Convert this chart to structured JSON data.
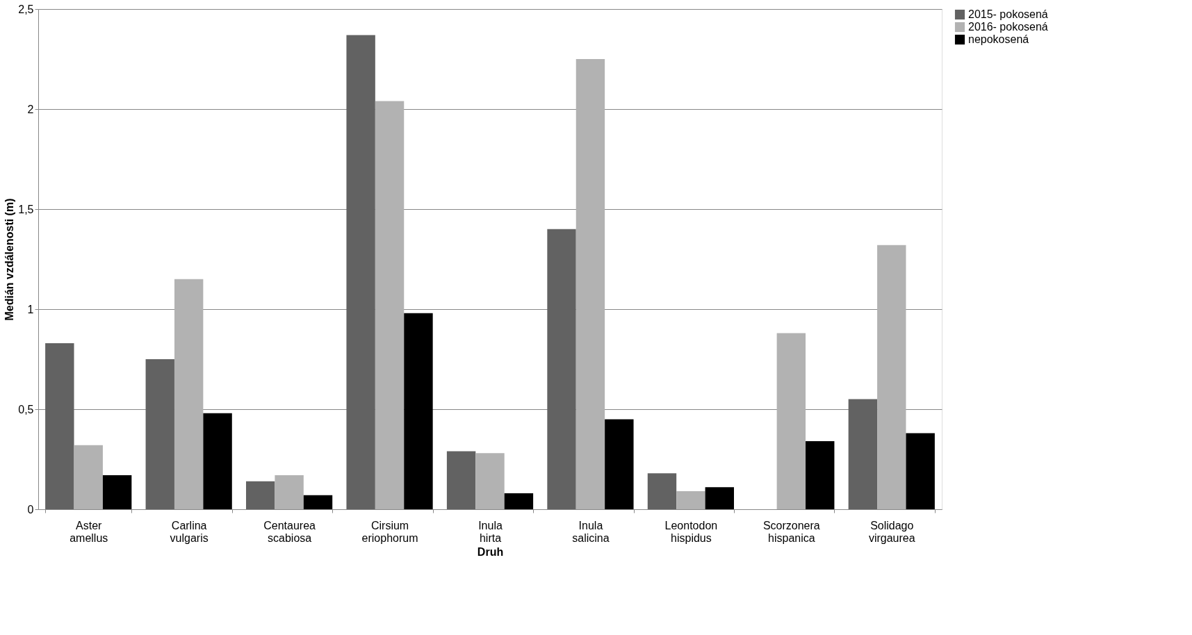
{
  "chart_data": {
    "type": "bar",
    "xlabel": "Druh",
    "ylabel": "Medián vzdálenosti (m)",
    "categories": [
      "Aster amellus",
      "Carlina vulgaris",
      "Centaurea scabiosa",
      "Cirsium eriophorum",
      "Inula hirta",
      "Inula salicina",
      "Leontodon hispidus",
      "Scorzonera hispanica",
      "Solidago virgaurea"
    ],
    "series": [
      {
        "name": "2015- pokosená",
        "color": "#626262",
        "values": [
          0.83,
          0.75,
          0.14,
          2.37,
          0.29,
          1.4,
          0.18,
          null,
          0.55
        ]
      },
      {
        "name": "2016- pokosená",
        "color": "#b2b2b2",
        "values": [
          0.32,
          1.15,
          0.17,
          2.04,
          0.28,
          2.25,
          0.09,
          0.88,
          1.32
        ]
      },
      {
        "name": "nepokosená",
        "color": "#000000",
        "values": [
          0.17,
          0.48,
          0.07,
          0.98,
          0.08,
          0.45,
          0.11,
          0.34,
          0.38
        ]
      }
    ],
    "ylim": [
      0,
      2.5
    ],
    "yticks": [
      0,
      {
        "value": 0.5,
        "label": "0,5"
      },
      1,
      {
        "value": 1.5,
        "label": "1,5"
      },
      2,
      {
        "value": 2.5,
        "label": "2,5"
      }
    ],
    "grid": "y",
    "legend": "right"
  }
}
